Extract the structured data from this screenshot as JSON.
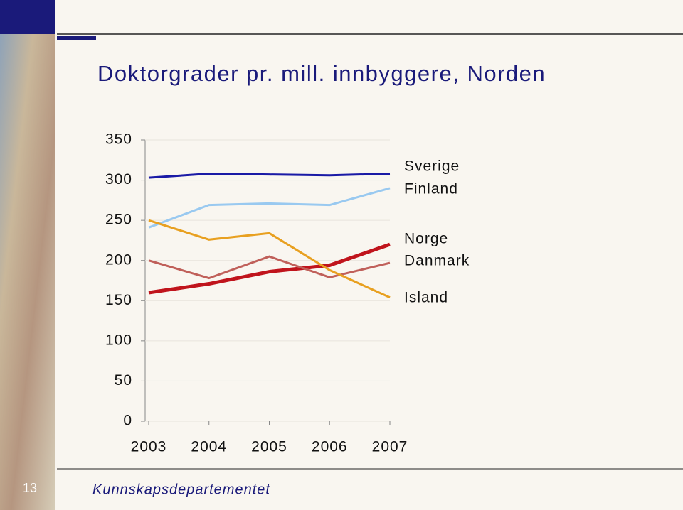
{
  "title": "Doktorgrader pr. mill. innbyggere, Norden",
  "footer": "Kunnskapsdepartementet",
  "page_number": "13",
  "chart_data": {
    "type": "line",
    "categories": [
      "2003",
      "2004",
      "2005",
      "2006",
      "2007"
    ],
    "ylim": [
      0,
      350
    ],
    "yticks": [
      0,
      50,
      100,
      150,
      200,
      250,
      300,
      350
    ],
    "grid": true,
    "series": [
      {
        "name": "Sverige",
        "color": "#1a1aa6",
        "values": [
          303,
          308,
          307,
          306,
          308
        ]
      },
      {
        "name": "Finland",
        "color": "#99c9f0",
        "values": [
          241,
          269,
          271,
          269,
          290
        ]
      },
      {
        "name": "Norge",
        "color": "#c0141c",
        "values": [
          160,
          171,
          186,
          194,
          220
        ]
      },
      {
        "name": "Danmark",
        "color": "#c0605a",
        "values": [
          200,
          178,
          205,
          179,
          197
        ]
      },
      {
        "name": "Island",
        "color": "#e8a020",
        "values": [
          250,
          226,
          234,
          188,
          154
        ]
      }
    ]
  }
}
